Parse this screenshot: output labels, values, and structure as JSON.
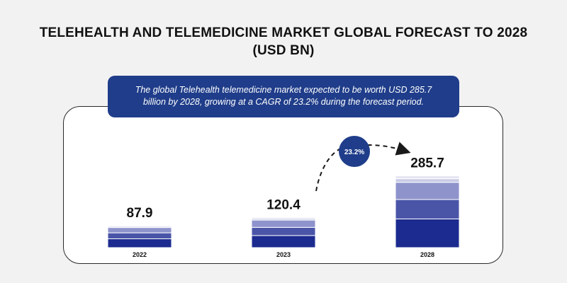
{
  "header": {
    "title_line1": "TELEHEALTH AND TELEMEDICINE MARKET GLOBAL FORECAST TO 2028",
    "title_line2": "(USD BN)"
  },
  "banner": {
    "line1": "The global Telehealth telemedicine market expected to be worth USD 285.7",
    "line2": "billion by 2028, growing at a CAGR of 23.2% during the forecast period."
  },
  "colors": {
    "segments": [
      "#1c2b8f",
      "#4a55a8",
      "#8e93cc",
      "#c9cbe6",
      "#e4e5f2"
    ],
    "banner": "#1f3d8a",
    "badge": "#1f3d8a"
  },
  "chart_data": {
    "type": "bar",
    "stacked": true,
    "categories": [
      "2022",
      "2023",
      "2028"
    ],
    "values": [
      87.9,
      120.4,
      285.7
    ],
    "value_labels": [
      "87.9",
      "120.4",
      "285.7"
    ],
    "cagr_label": "23.2%",
    "title": "TELEHEALTH AND TELEMEDICINE MARKET GLOBAL FORECAST TO 2028 (USD BN)",
    "xlabel": "",
    "ylabel": ""
  }
}
